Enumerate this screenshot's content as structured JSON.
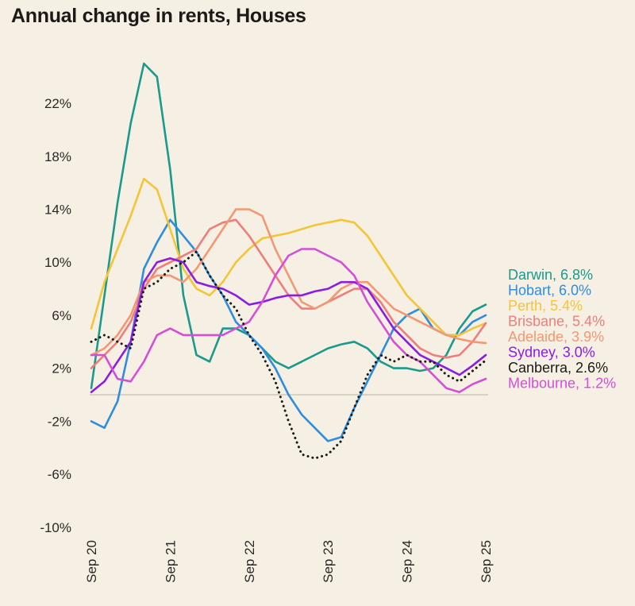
{
  "chart_data": {
    "type": "line",
    "title": "Annual change in rents, Houses",
    "xlabel": "",
    "ylabel": "",
    "ylim": [
      -10,
      24
    ],
    "yticks": [
      22,
      18,
      14,
      10,
      6,
      2,
      -2,
      -6,
      -10
    ],
    "ytick_labels": [
      "22%",
      "18%",
      "14%",
      "10%",
      "6%",
      "2%",
      "-2%",
      "-6%",
      "-10%"
    ],
    "xlim": [
      0,
      60
    ],
    "x_unit": "months since Sep 2020 (bi-monthly points)",
    "xticks": [
      0,
      12,
      24,
      36,
      48,
      60
    ],
    "xtick_labels": [
      "Sep 20",
      "Sep 21",
      "Sep 22",
      "Sep 23",
      "Sep 24",
      "Sep 25"
    ],
    "zero_line": true,
    "grid": false,
    "legend_position": "right",
    "x": [
      0,
      2,
      4,
      6,
      8,
      10,
      12,
      14,
      16,
      18,
      20,
      22,
      24,
      26,
      28,
      30,
      32,
      34,
      36,
      38,
      40,
      42,
      44,
      46,
      48,
      50,
      52,
      54,
      56,
      58,
      60
    ],
    "series": [
      {
        "name": "Darwin",
        "label": "Darwin, 6.8%",
        "color": "#1a9a8c",
        "dashed": false,
        "values": [
          0.5,
          7.5,
          14.5,
          20.5,
          25.0,
          24.0,
          17.0,
          7.5,
          3.0,
          2.5,
          5.0,
          5.0,
          4.5,
          3.5,
          2.5,
          2.0,
          2.5,
          3.0,
          3.5,
          3.8,
          4.0,
          3.5,
          2.5,
          2.0,
          2.0,
          1.8,
          2.0,
          3.0,
          5.0,
          6.3,
          6.8
        ]
      },
      {
        "name": "Hobart",
        "label": "Hobart, 6.0%",
        "color": "#2e8ddc",
        "dashed": false,
        "values": [
          -2.0,
          -2.5,
          -0.5,
          4.0,
          9.5,
          11.5,
          13.2,
          12.0,
          10.8,
          9.0,
          7.5,
          5.5,
          4.5,
          3.5,
          2.0,
          0.0,
          -1.5,
          -2.5,
          -3.5,
          -3.2,
          -1.0,
          1.0,
          3.0,
          5.0,
          6.0,
          6.5,
          5.0,
          4.5,
          4.5,
          5.5,
          6.0
        ]
      },
      {
        "name": "Perth",
        "label": "Perth, 5.4%",
        "color": "#f4c536",
        "dashed": false,
        "values": [
          5.0,
          8.5,
          11.0,
          13.5,
          16.3,
          15.5,
          12.5,
          9.5,
          8.0,
          7.5,
          8.5,
          10.0,
          11.0,
          11.8,
          12.0,
          12.2,
          12.5,
          12.8,
          13.0,
          13.2,
          13.0,
          12.0,
          10.5,
          9.0,
          7.5,
          6.5,
          5.5,
          4.5,
          4.5,
          5.0,
          5.4
        ]
      },
      {
        "name": "Brisbane",
        "label": "Brisbane, 5.4%",
        "color": "#ef7d7a",
        "dashed": false,
        "values": [
          2.0,
          3.0,
          4.0,
          5.5,
          8.0,
          9.5,
          10.0,
          10.5,
          11.0,
          12.5,
          13.0,
          13.2,
          12.0,
          10.5,
          9.0,
          7.5,
          6.5,
          6.5,
          7.0,
          7.5,
          8.0,
          8.0,
          7.0,
          5.5,
          4.5,
          3.5,
          3.0,
          2.8,
          3.0,
          4.0,
          5.4
        ]
      },
      {
        "name": "Adelaide",
        "label": "Adelaide, 3.9%",
        "color": "#f39873",
        "dashed": false,
        "values": [
          3.0,
          3.5,
          4.5,
          6.0,
          8.5,
          9.0,
          9.0,
          8.5,
          9.5,
          11.0,
          12.5,
          14.0,
          14.0,
          13.5,
          11.0,
          9.0,
          7.0,
          6.5,
          7.0,
          8.0,
          8.5,
          8.5,
          7.5,
          6.5,
          6.0,
          5.5,
          5.0,
          4.5,
          4.2,
          4.0,
          3.9
        ]
      },
      {
        "name": "Sydney",
        "label": "Sydney, 3.0%",
        "color": "#8d1be0",
        "dashed": false,
        "values": [
          0.2,
          1.0,
          2.5,
          4.0,
          8.5,
          10.0,
          10.3,
          10.0,
          8.5,
          8.2,
          8.0,
          7.5,
          6.8,
          7.0,
          7.3,
          7.5,
          7.5,
          7.8,
          8.0,
          8.5,
          8.5,
          8.0,
          6.5,
          5.0,
          4.0,
          3.0,
          2.5,
          2.0,
          1.5,
          2.2,
          3.0
        ]
      },
      {
        "name": "Canberra",
        "label": "Canberra, 2.6%",
        "color": "#1c1a17",
        "dashed": true,
        "values": [
          4.0,
          4.5,
          4.0,
          3.5,
          8.0,
          8.5,
          9.5,
          10.0,
          10.8,
          9.0,
          7.5,
          6.5,
          4.5,
          3.0,
          1.0,
          -2.0,
          -4.5,
          -4.8,
          -4.5,
          -3.5,
          -1.0,
          1.5,
          3.0,
          2.5,
          3.0,
          2.5,
          2.5,
          1.5,
          1.0,
          1.8,
          2.6
        ]
      },
      {
        "name": "Melbourne",
        "label": "Melbourne, 1.2%",
        "color": "#d44fd6",
        "dashed": false,
        "values": [
          3.0,
          3.0,
          1.2,
          1.0,
          2.5,
          4.5,
          5.0,
          4.5,
          4.5,
          4.5,
          4.5,
          5.0,
          5.5,
          7.0,
          9.0,
          10.5,
          11.0,
          11.0,
          10.5,
          10.0,
          9.0,
          7.0,
          5.5,
          4.0,
          3.0,
          2.5,
          1.5,
          0.5,
          0.2,
          0.8,
          1.2
        ]
      }
    ]
  }
}
